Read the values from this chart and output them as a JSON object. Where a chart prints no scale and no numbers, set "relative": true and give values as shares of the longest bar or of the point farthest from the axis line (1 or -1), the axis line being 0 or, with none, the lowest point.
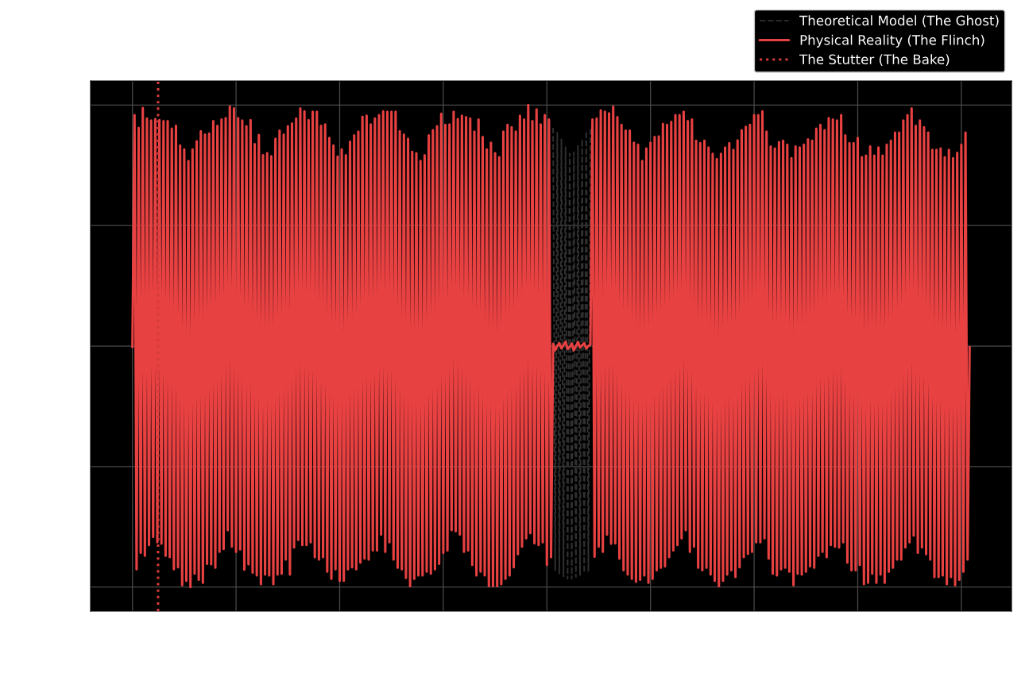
{
  "chart_data": {
    "type": "line",
    "relative": true,
    "grid": true,
    "legend": "top right",
    "categories": [
      null,
      null,
      null,
      null,
      null,
      null,
      null,
      null,
      null,
      null,
      null,
      null,
      null,
      null,
      null,
      null,
      null,
      null,
      null,
      null,
      null,
      null,
      null,
      null,
      null,
      null,
      null,
      null,
      null,
      null,
      null,
      null,
      null,
      null,
      null,
      null,
      null,
      null,
      null,
      null,
      null,
      null,
      null,
      null,
      null,
      null,
      null,
      null,
      null,
      null,
      null,
      null,
      null,
      null,
      null,
      null,
      null,
      null,
      null,
      null,
      null,
      null,
      null,
      null,
      null,
      null,
      null,
      null,
      null,
      null,
      null,
      null,
      null,
      null,
      null,
      null,
      null,
      null,
      null,
      null,
      null,
      null,
      null,
      null,
      null,
      null,
      null,
      null,
      null,
      null,
      null,
      null,
      null,
      null,
      null,
      null,
      null,
      null,
      null,
      null,
      null,
      null,
      null,
      null,
      null,
      null,
      null,
      null,
      null,
      null,
      null,
      null,
      null,
      null,
      null,
      null,
      null,
      null,
      null,
      null,
      null,
      null,
      null,
      null,
      null,
      null,
      null,
      null,
      null,
      null,
      null,
      null,
      null,
      null,
      null,
      null,
      null,
      null,
      null,
      null,
      null,
      null,
      null,
      null,
      null,
      null,
      null,
      null,
      null,
      null,
      null,
      null,
      null,
      null,
      null,
      null,
      null,
      null,
      null,
      null,
      null,
      null,
      null,
      null,
      null,
      null,
      null,
      null,
      null,
      null,
      null,
      null,
      null,
      null,
      null,
      null,
      null,
      null,
      null,
      null,
      null,
      null,
      null,
      null,
      null,
      null,
      null,
      null,
      null,
      null,
      null,
      null,
      null,
      null,
      null,
      null,
      null,
      null,
      null,
      null,
      null,
      null,
      null,
      null,
      null,
      null,
      null,
      null,
      null,
      null,
      null,
      null,
      null,
      null,
      null,
      null,
      null,
      null,
      null,
      null,
      null,
      null,
      null,
      null,
      null,
      null,
      null,
      null,
      null,
      null,
      null,
      null,
      null,
      null,
      null,
      null,
      null,
      null,
      null,
      null,
      null,
      null,
      null,
      null,
      null,
      null,
      null,
      null,
      null,
      null,
      null,
      null,
      null,
      null,
      null,
      null,
      null,
      null,
      null,
      null,
      null,
      null,
      null,
      null,
      null,
      null,
      null,
      null,
      null,
      null,
      null,
      null,
      null,
      null,
      null,
      null,
      null,
      null,
      null,
      null,
      null,
      null,
      null,
      null,
      null,
      null,
      null,
      null,
      null,
      null,
      null,
      null,
      null,
      null,
      null,
      null,
      null,
      null,
      null,
      null,
      null,
      null,
      null,
      null,
      null,
      null,
      null,
      null,
      null,
      null,
      null,
      null,
      null,
      null,
      null,
      null,
      null,
      null,
      null,
      null,
      null,
      null,
      null,
      null,
      null,
      null,
      null,
      null,
      null,
      null,
      null,
      null,
      null,
      null,
      null,
      null,
      null,
      null,
      null,
      null,
      null,
      null,
      null,
      null,
      null,
      null,
      null,
      null,
      null,
      null,
      null,
      null,
      null,
      null,
      null,
      null,
      null,
      null,
      null,
      null,
      null,
      null,
      null,
      null,
      null,
      null,
      null,
      null,
      null,
      null,
      null,
      null,
      null,
      null,
      null,
      null,
      null,
      null,
      null,
      null,
      null,
      null,
      null,
      null,
      null,
      null,
      null,
      null,
      null,
      null,
      null,
      null,
      null,
      null,
      null,
      null,
      null,
      null,
      null,
      null,
      null,
      null,
      null,
      null,
      null
    ],
    "series": [
      {
        "name": "Theoretical Model (The Ghost)",
        "color": "#303030",
        "line_style": "dashed",
        "values": [
          null,
          null,
          null,
          null,
          null,
          null,
          null,
          null,
          null,
          null,
          null,
          null,
          null,
          null,
          null,
          null,
          null,
          null,
          null,
          null,
          null,
          null,
          null,
          null,
          null,
          null,
          null,
          null,
          null,
          null,
          null,
          null,
          null,
          null,
          null,
          null,
          null,
          null,
          null,
          null,
          null,
          null,
          null,
          null,
          null,
          null,
          null,
          null,
          null,
          null,
          null,
          null,
          null,
          null,
          null,
          null,
          null,
          null,
          null,
          null,
          null,
          null,
          null,
          null,
          null,
          null,
          null,
          null,
          null,
          null,
          null,
          null,
          null,
          null,
          null,
          null,
          null,
          null,
          null,
          null,
          null,
          null,
          null,
          null,
          null,
          null,
          null,
          null,
          null,
          null,
          null,
          null,
          null,
          null,
          null,
          null,
          null,
          null,
          null,
          null,
          null,
          null,
          null,
          null,
          null,
          null,
          null,
          null,
          null,
          null,
          null,
          null,
          null,
          null,
          null,
          null,
          null,
          null,
          null,
          null,
          null,
          null,
          null,
          null,
          null,
          null,
          null,
          null,
          null,
          null,
          null,
          null,
          null,
          null,
          null,
          null,
          null,
          null,
          null,
          null,
          null,
          null,
          null,
          null,
          null,
          null,
          null,
          null,
          null,
          null,
          null,
          null,
          null,
          null,
          null,
          null,
          null,
          null,
          null,
          null,
          null,
          null,
          null,
          null,
          null,
          null,
          null,
          null,
          null,
          null,
          null,
          null,
          null,
          null,
          null,
          null,
          null,
          null,
          null,
          null,
          null,
          null,
          null,
          null,
          null,
          null,
          null,
          null,
          null,
          null,
          null,
          null,
          null,
          null,
          null,
          null,
          null,
          null,
          null,
          null,
          null,
          null,
          null,
          0.953,
          0.035,
          0.943,
          0.028,
          0.929,
          0.022,
          0.913,
          0.017,
          0.899,
          0.017,
          0.902,
          0.021,
          0.916,
          0.025,
          0.929,
          0.03,
          0.946,
          0.033,
          0.956,
          null,
          null,
          null,
          null,
          null,
          null,
          null,
          null,
          null,
          null,
          null,
          null,
          null,
          null,
          null,
          null,
          null,
          null,
          null,
          null,
          null,
          null,
          null,
          null,
          null,
          null,
          null,
          null,
          null,
          null,
          null,
          null,
          null,
          null,
          null,
          null,
          null,
          null,
          null,
          null,
          null,
          null,
          null,
          null,
          null,
          null,
          null,
          null,
          null,
          null,
          null,
          null,
          null,
          null,
          null,
          null,
          null,
          null,
          null,
          null,
          null,
          null,
          null,
          null,
          null,
          null,
          null,
          null,
          null,
          null,
          null,
          null,
          null,
          null,
          null,
          null,
          null,
          null,
          null,
          null,
          null,
          null,
          null,
          null,
          null,
          null,
          null,
          null,
          null,
          null,
          null,
          null,
          null,
          null,
          null,
          null,
          null,
          null,
          null,
          null,
          null,
          null,
          null,
          null,
          null,
          null,
          null,
          null,
          null,
          null,
          null,
          null,
          null,
          null,
          null,
          null,
          null,
          null,
          null,
          null,
          null,
          null,
          null,
          null,
          null,
          null,
          null,
          null,
          null,
          null,
          null,
          null,
          null,
          null,
          null,
          null,
          null,
          null,
          null,
          null,
          null,
          null,
          null,
          null,
          null,
          null,
          null,
          null,
          null,
          null,
          null,
          null,
          null,
          null,
          null,
          null,
          null,
          null,
          null,
          null,
          null,
          null,
          null,
          null,
          null,
          null,
          null,
          null,
          null,
          null,
          null,
          null,
          null,
          null,
          null,
          null,
          null,
          null,
          null,
          null,
          null,
          null,
          null
        ]
      },
      {
        "name": "Physical Reality (The Flinch)",
        "color": "#e84142",
        "line_style": "solid",
        "values": [
          0.498,
          0.979,
          0.037,
          0.953,
          0.071,
          0.994,
          0.065,
          0.972,
          0.087,
          0.968,
          0.104,
          0.971,
          0.093,
          0.969,
          0.09,
          0.967,
          0.065,
          0.967,
          0.062,
          0.951,
          0.037,
          0.957,
          0.041,
          0.916,
          0.004,
          0.908,
          0.013,
          0.884,
          0.0,
          0.908,
          0.028,
          0.925,
          0.015,
          0.946,
          0.009,
          0.939,
          0.048,
          0.941,
          0.047,
          0.967,
          0.04,
          0.957,
          0.073,
          0.97,
          0.079,
          0.973,
          0.118,
          0.997,
          0.084,
          0.993,
          0.073,
          0.973,
          0.078,
          0.968,
          0.036,
          0.956,
          0.047,
          0.969,
          0.03,
          0.919,
          0.024,
          0.938,
          0.006,
          0.896,
          0.026,
          0.9,
          0.024,
          0.894,
          0.006,
          0.93,
          0.026,
          0.947,
          0.028,
          0.939,
          0.057,
          0.956,
          0.026,
          0.962,
          0.082,
          0.972,
          0.098,
          0.993,
          0.087,
          0.987,
          0.087,
          0.969,
          0.093,
          0.986,
          0.062,
          0.986,
          0.057,
          0.957,
          0.062,
          0.96,
          0.032,
          0.932,
          0.017,
          0.916,
          0.037,
          0.893,
          0.013,
          0.908,
          0.013,
          0.896,
          0.037,
          0.924,
          0.041,
          0.937,
          0.037,
          0.945,
          0.051,
          0.976,
          0.059,
          0.978,
          0.057,
          0.96,
          0.076,
          0.972,
          0.076,
          0.979,
          0.109,
          0.987,
          0.073,
          0.986,
          0.093,
          0.986,
          0.057,
          0.986,
          0.04,
          0.946,
          0.037,
          0.939,
          0.019,
          0.93,
          0.002,
          0.903,
          0.017,
          0.9,
          0.024,
          0.884,
          0.024,
          0.896,
          0.032,
          0.937,
          0.028,
          0.948,
          0.037,
          0.956,
          0.048,
          0.982,
          0.071,
          0.959,
          0.076,
          0.96,
          0.118,
          0.986,
          0.116,
          0.971,
          0.109,
          0.978,
          0.073,
          0.975,
          0.076,
          0.972,
          0.046,
          0.945,
          0.024,
          0.97,
          0.032,
          0.934,
          0.024,
          0.908,
          0.002,
          0.922,
          0.002,
          0.9,
          0.002,
          0.892,
          0.006,
          0.945,
          0.017,
          0.959,
          0.024,
          0.954,
          0.041,
          0.945,
          0.068,
          0.978,
          0.084,
          0.97,
          0.101,
          1.0,
          0.112,
          0.967,
          0.091,
          0.991,
          0.087,
          0.96,
          0.093,
          0.979,
          0.046,
          0.97,
          0.062,
          0.505,
          0.491,
          0.5,
          0.506,
          0.495,
          0.502,
          0.509,
          0.494,
          0.498,
          0.505,
          0.491,
          0.5,
          0.508,
          0.497,
          0.502,
          0.506,
          0.495,
          0.5,
          0.503,
          0.97,
          0.063,
          0.972,
          0.084,
          0.989,
          0.073,
          0.986,
          0.109,
          0.983,
          0.09,
          0.997,
          0.091,
          0.975,
          0.059,
          0.959,
          0.035,
          0.947,
          0.026,
          0.947,
          0.017,
          0.922,
          0.011,
          0.918,
          0.015,
          0.884,
          0.024,
          0.91,
          0.009,
          0.922,
          0.017,
          0.934,
          0.035,
          0.935,
          0.04,
          0.961,
          0.043,
          0.959,
          0.062,
          0.965,
          0.076,
          0.979,
          0.087,
          0.979,
          0.101,
          0.986,
          0.118,
          0.967,
          0.073,
          0.97,
          0.084,
          0.926,
          0.04,
          0.921,
          0.035,
          0.926,
          0.04,
          0.912,
          0.026,
          0.899,
          0.013,
          0.888,
          0.002,
          0.899,
          0.013,
          0.912,
          0.026,
          0.921,
          0.035,
          0.907,
          0.021,
          0.927,
          0.041,
          0.948,
          0.062,
          0.955,
          0.069,
          0.959,
          0.073,
          0.979,
          0.093,
          0.979,
          0.093,
          0.987,
          0.101,
          0.945,
          0.059,
          0.914,
          0.028,
          0.91,
          0.024,
          0.923,
          0.037,
          0.926,
          0.04,
          0.918,
          0.032,
          0.89,
          0.004,
          0.914,
          0.028,
          0.912,
          0.026,
          0.918,
          0.032,
          0.929,
          0.043,
          0.926,
          0.04,
          0.951,
          0.065,
          0.959,
          0.073,
          0.948,
          0.062,
          0.973,
          0.087,
          0.97,
          0.084,
          0.968,
          0.082,
          0.979,
          0.093,
          0.937,
          0.051,
          0.921,
          0.035,
          0.921,
          0.035,
          0.932,
          0.046,
          0.892,
          0.006,
          0.895,
          0.009,
          0.914,
          0.028,
          0.895,
          0.009,
          0.912,
          0.026,
          0.895,
          0.009,
          0.918,
          0.032,
          0.926,
          0.04,
          0.943,
          0.057,
          0.943,
          0.057,
          0.968,
          0.082,
          0.979,
          0.093,
          0.993,
          0.107,
          0.957,
          0.071,
          0.968,
          0.082,
          0.954,
          0.068,
          0.943,
          0.057,
          0.907,
          0.021,
          0.907,
          0.021,
          0.91,
          0.024,
          0.892,
          0.006,
          0.907,
          0.021,
          0.89,
          0.004,
          0.901,
          0.015,
          0.918,
          0.032,
          0.943,
          0.057,
          0.498
        ]
      }
    ],
    "annotations": [
      "The Stutter (The Bake)"
    ]
  }
}
